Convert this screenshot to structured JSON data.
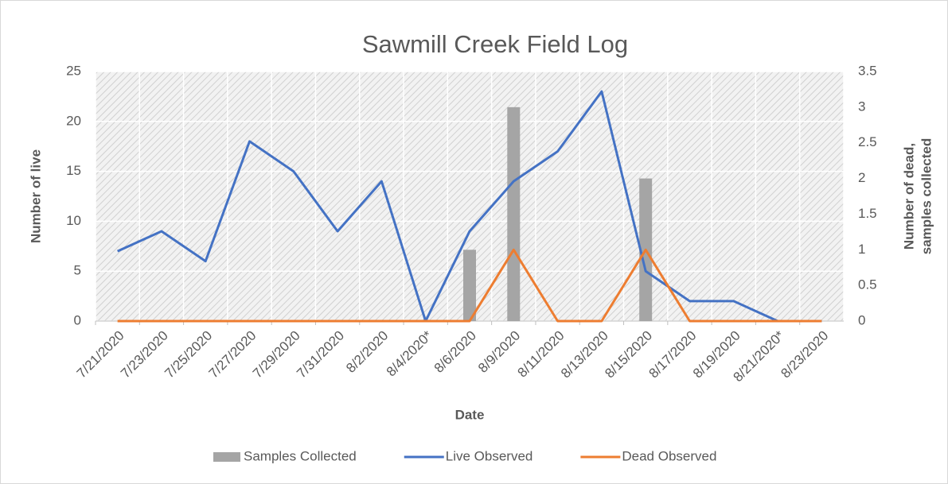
{
  "chart_data": {
    "type": "combo",
    "title": "Sawmill Creek Field Log",
    "xlabel": "Date",
    "ylabel": "Number of live",
    "y2label": [
      "Number of dead,",
      "samples collected"
    ],
    "categories": [
      "7/21/2020",
      "7/23/2020",
      "7/25/2020",
      "7/27/2020",
      "7/29/2020",
      "7/31/2020",
      "8/2/2020",
      "8/4/2020*",
      "8/6/2020",
      "8/9/2020",
      "8/11/2020",
      "8/13/2020",
      "8/15/2020",
      "8/17/2020",
      "8/19/2020",
      "8/21/2020*",
      "8/23/2020"
    ],
    "series": [
      {
        "name": "Samples Collected",
        "kind": "bar",
        "axis": "y2",
        "color": "#a5a5a5",
        "values": [
          0,
          0,
          0,
          0,
          0,
          0,
          0,
          0,
          1,
          3,
          0,
          0,
          2,
          0,
          0,
          0,
          0
        ]
      },
      {
        "name": "Live Observed",
        "kind": "line",
        "axis": "y",
        "color": "#4472c4",
        "values": [
          7,
          9,
          6,
          18,
          15,
          9,
          14,
          0,
          9,
          14,
          17,
          23,
          5,
          2,
          2,
          0,
          0
        ]
      },
      {
        "name": "Dead Observed",
        "kind": "line",
        "axis": "y2",
        "color": "#ed7d31",
        "values": [
          0,
          0,
          0,
          0,
          0,
          0,
          0,
          0,
          0,
          1,
          0,
          0,
          1,
          0,
          0,
          0,
          0
        ]
      }
    ],
    "ylim": [
      0,
      25
    ],
    "yticks": [
      0,
      5,
      10,
      15,
      20,
      25
    ],
    "y2lim": [
      0,
      3.5
    ],
    "y2ticks": [
      0,
      0.5,
      1,
      1.5,
      2,
      2.5,
      3,
      3.5
    ],
    "grid": true,
    "legend": "bottom"
  }
}
